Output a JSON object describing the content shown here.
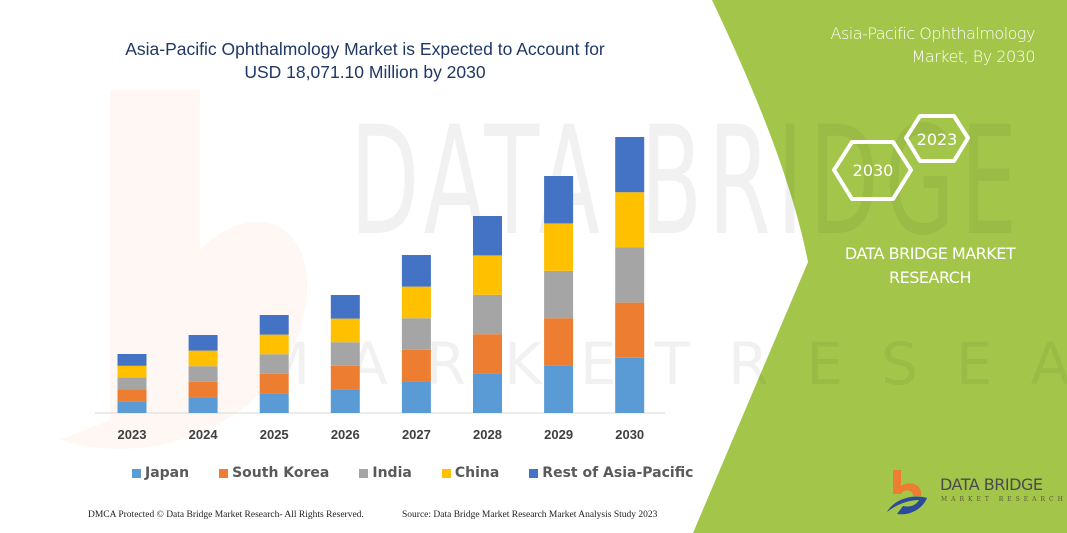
{
  "colors": {
    "panel": "#a3c64a",
    "title": "#1f3864",
    "Japan": "#5b9bd5",
    "South Korea": "#ed7d31",
    "India": "#a5a5a5",
    "China": "#ffc000",
    "Rest of Asia-Pacific": "#4472c4"
  },
  "watermark": {
    "line1": "DATA BRIDGE",
    "line2": "MARKET RESEARCH"
  },
  "side_panel": {
    "title_line1": "Asia-Pacific Ophthalmology",
    "title_line2": "Market, By 2030",
    "hex_front": "2030",
    "hex_back": "2023",
    "brand_line1": "DATA BRIDGE MARKET",
    "brand_line2": "RESEARCH",
    "logo_text": "DATA BRIDGE",
    "logo_sub": "MARKET RESEARCH"
  },
  "footer": {
    "left": "DMCA Protected © Data Bridge Market Research-  All Rights Reserved.",
    "right": "Source: Data Bridge Market Research  Market Analysis Study 2023"
  },
  "chart_data": {
    "type": "bar",
    "stacked": true,
    "title_line1": "Asia-Pacific Ophthalmology Market is Expected to Account for",
    "title_line2": "USD 18,071.10 Million by 2030",
    "xlabel": "",
    "ylabel": "",
    "ylim": [
      0,
      18071.1
    ],
    "grid": false,
    "legend_position": "bottom",
    "categories": [
      "2023",
      "2024",
      "2025",
      "2026",
      "2027",
      "2028",
      "2029",
      "2030"
    ],
    "series": [
      {
        "name": "Japan",
        "values": [
          773,
          1021,
          1283,
          1545,
          2069,
          2580,
          3103,
          3614
        ]
      },
      {
        "name": "South Korea",
        "values": [
          773,
          1021,
          1283,
          1545,
          2069,
          2580,
          3103,
          3614
        ]
      },
      {
        "name": "India",
        "values": [
          773,
          1021,
          1283,
          1545,
          2069,
          2580,
          3103,
          3614
        ]
      },
      {
        "name": "China",
        "values": [
          772,
          1022,
          1284,
          1545,
          2069,
          2579,
          3104,
          3614
        ]
      },
      {
        "name": "Rest of Asia-Pacific",
        "values": [
          772,
          1022,
          1283,
          1545,
          2068,
          2579,
          3104,
          3615.1
        ]
      }
    ]
  }
}
